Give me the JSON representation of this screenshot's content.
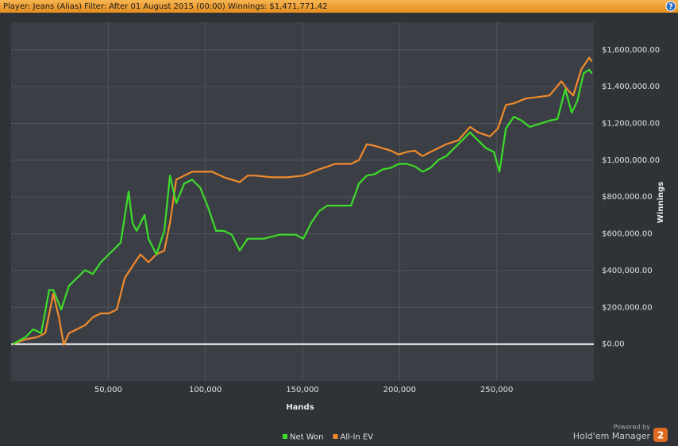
{
  "chart_data": {
    "type": "line",
    "title": "Player: Jeans (Alias) Filter: After 01 August 2015 (00:00) Winnings: $1,471,771.42",
    "xlabel": "Hands",
    "ylabel": "Winnings",
    "xlim": [
      0,
      300000
    ],
    "ylim": [
      -200000,
      1750000
    ],
    "xticks": [
      {
        "value": 50000,
        "label": "50,000"
      },
      {
        "value": 100000,
        "label": "100,000"
      },
      {
        "value": 150000,
        "label": "150,000"
      },
      {
        "value": 200000,
        "label": "200,000"
      },
      {
        "value": 250000,
        "label": "250,000"
      }
    ],
    "yticks": [
      {
        "value": 0,
        "label": "$0.00"
      },
      {
        "value": 200000,
        "label": "$200,000.00"
      },
      {
        "value": 400000,
        "label": "$400,000.00"
      },
      {
        "value": 600000,
        "label": "$600,000.00"
      },
      {
        "value": 800000,
        "label": "$800,000.00"
      },
      {
        "value": 1000000,
        "label": "$1,000,000.00"
      },
      {
        "value": 1200000,
        "label": "$1,200,000.00"
      },
      {
        "value": 1400000,
        "label": "$1,400,000.00"
      },
      {
        "value": 1600000,
        "label": "$1,600,000.00"
      }
    ],
    "grid": true,
    "legend": "bottom",
    "series": [
      {
        "name": "Net Won",
        "color": "#3ddc2a",
        "x": [
          800,
          7400,
          11400,
          15500,
          19600,
          21700,
          25800,
          29800,
          33900,
          38000,
          42100,
          46200,
          50300,
          56400,
          60500,
          62500,
          64600,
          68700,
          70700,
          74800,
          78900,
          81800,
          85000,
          89100,
          93200,
          97300,
          101400,
          105500,
          109600,
          113600,
          117700,
          121800,
          130000,
          138200,
          146400,
          150400,
          154500,
          158600,
          162700,
          166800,
          170900,
          175000,
          179100,
          183100,
          187200,
          191300,
          195400,
          199500,
          203600,
          207700,
          211800,
          215800,
          219900,
          224000,
          230200,
          236300,
          240400,
          244500,
          248600,
          251400,
          254700,
          258800,
          262900,
          266900,
          271000,
          277200,
          281300,
          285300,
          288600,
          291500,
          294700,
          297600,
          299000
        ],
        "values": [
          0,
          38000,
          81000,
          60000,
          295000,
          295000,
          188000,
          317000,
          359000,
          402000,
          381000,
          445000,
          488000,
          552000,
          830000,
          659000,
          616000,
          702000,
          573000,
          488000,
          616000,
          916000,
          766000,
          873000,
          894000,
          851000,
          744000,
          616000,
          616000,
          595000,
          509000,
          573000,
          573000,
          595000,
          595000,
          573000,
          659000,
          723000,
          753000,
          753000,
          753000,
          753000,
          873000,
          916000,
          924000,
          950000,
          958000,
          980000,
          980000,
          967000,
          937000,
          958000,
          1001000,
          1022000,
          1087000,
          1151000,
          1108000,
          1065000,
          1044000,
          937000,
          1172000,
          1236000,
          1215000,
          1181000,
          1194000,
          1215000,
          1224000,
          1386000,
          1258000,
          1322000,
          1472000,
          1492000,
          1472000
        ]
      },
      {
        "name": "All-In EV",
        "color": "#f08a2c",
        "x": [
          800,
          7400,
          13500,
          17600,
          21700,
          24600,
          27100,
          29800,
          33900,
          38000,
          42100,
          46200,
          50300,
          54400,
          58500,
          62500,
          66600,
          70700,
          74800,
          78900,
          81800,
          85000,
          89100,
          93200,
          99300,
          103400,
          109600,
          113600,
          117700,
          121800,
          125900,
          134100,
          142300,
          150400,
          158600,
          166800,
          175000,
          179100,
          183100,
          187200,
          191300,
          195400,
          199500,
          203600,
          207700,
          211800,
          215800,
          224000,
          230200,
          236300,
          240400,
          246500,
          250600,
          254700,
          258800,
          264900,
          271000,
          277200,
          283300,
          286200,
          289400,
          293500,
          297600,
          299000
        ],
        "values": [
          0,
          26000,
          38000,
          60000,
          274000,
          146000,
          -4000,
          60000,
          81000,
          103000,
          146000,
          167000,
          167000,
          188000,
          359000,
          424000,
          488000,
          445000,
          488000,
          509000,
          659000,
          894000,
          916000,
          937000,
          937000,
          937000,
          907000,
          894000,
          881000,
          916000,
          916000,
          907000,
          907000,
          916000,
          950000,
          980000,
          980000,
          1001000,
          1087000,
          1078000,
          1065000,
          1052000,
          1031000,
          1044000,
          1052000,
          1022000,
          1044000,
          1087000,
          1108000,
          1181000,
          1151000,
          1129000,
          1172000,
          1300000,
          1309000,
          1335000,
          1343000,
          1352000,
          1429000,
          1386000,
          1352000,
          1493000,
          1557000,
          1536000
        ]
      }
    ]
  },
  "help_icon": "?",
  "branding": {
    "powered_by": "Powered by",
    "product": "Hold'em Manager",
    "badge": "2"
  }
}
